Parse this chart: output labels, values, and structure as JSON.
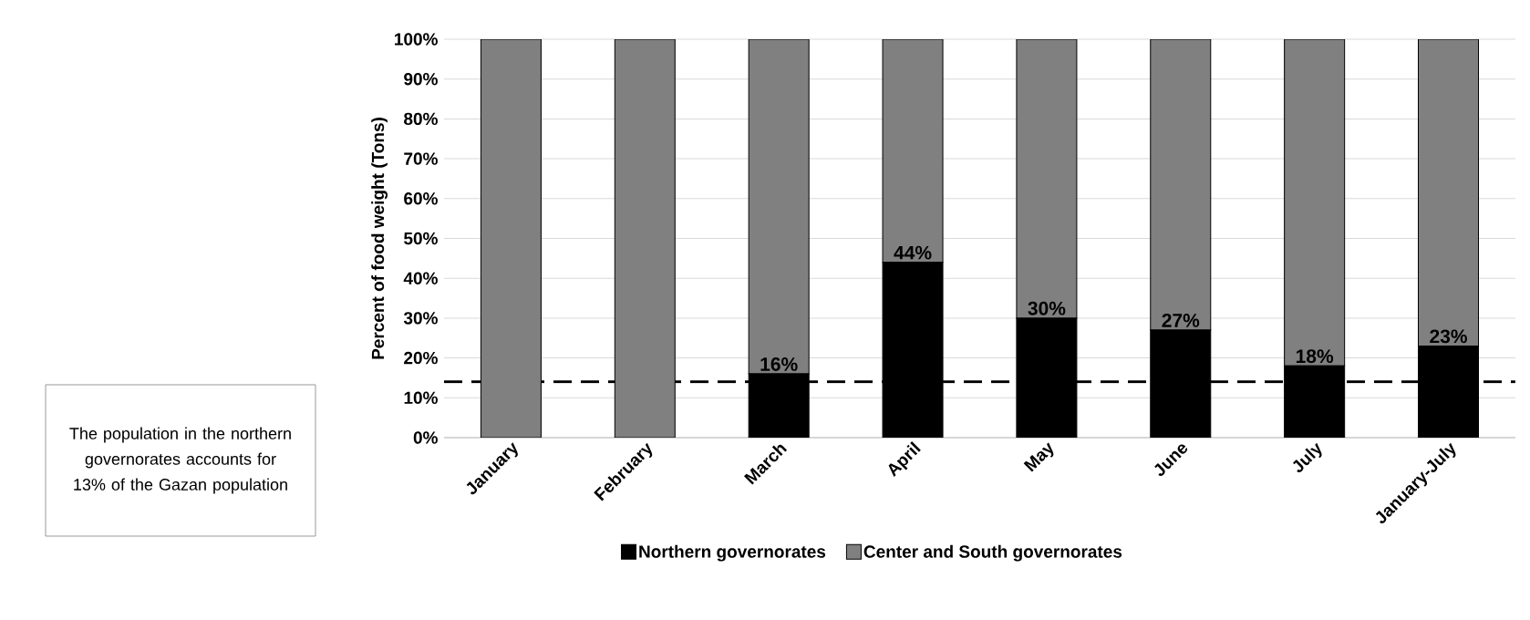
{
  "chart_data": {
    "type": "bar",
    "stacked": true,
    "ylabel": "Percent of food weight (Tons)",
    "categories": [
      "January",
      "February",
      "March",
      "April",
      "May",
      "June",
      "July",
      "January-July"
    ],
    "series": [
      {
        "name": "Northern governorates",
        "color": "#000000",
        "values": [
          0,
          0,
          16,
          44,
          30,
          27,
          18,
          23
        ],
        "value_labels": [
          null,
          null,
          "16%",
          "44%",
          "30%",
          "27%",
          "18%",
          "23%"
        ]
      },
      {
        "name": "Center and South governorates",
        "color": "#808080",
        "values": [
          100,
          100,
          84,
          56,
          70,
          73,
          82,
          77
        ]
      }
    ],
    "ylim": [
      0,
      100
    ],
    "yticks": [
      {
        "value": 0,
        "label": "0%"
      },
      {
        "value": 10,
        "label": "10%"
      },
      {
        "value": 20,
        "label": "20%"
      },
      {
        "value": 30,
        "label": "30%"
      },
      {
        "value": 40,
        "label": "40%"
      },
      {
        "value": 50,
        "label": "50%"
      },
      {
        "value": 60,
        "label": "60%"
      },
      {
        "value": 70,
        "label": "70%"
      },
      {
        "value": 80,
        "label": "80%"
      },
      {
        "value": 90,
        "label": "90%"
      },
      {
        "value": 100,
        "label": "100%"
      }
    ],
    "grid": "y",
    "legend": "bottom",
    "ref_lines": [
      {
        "axis": "y",
        "value": 14,
        "line_style": "dashed",
        "color": "#000000"
      }
    ],
    "annotations": [
      "The population in the northern governorates accounts for 13% of the Gazan population"
    ]
  }
}
